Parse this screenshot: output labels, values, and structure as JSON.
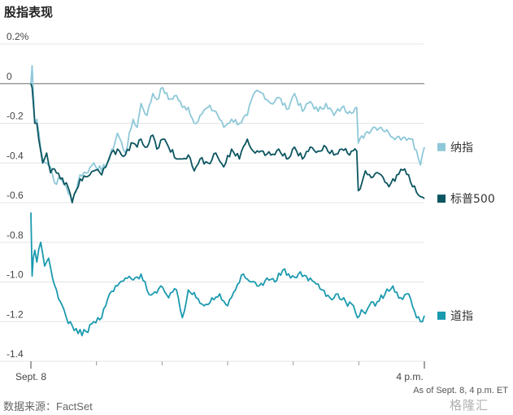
{
  "header": {
    "title": "股指表现"
  },
  "footer": {
    "source": "数据来源：FactSet",
    "as_of": "As of Sept. 8, 4 p.m. ET",
    "watermark": "格隆汇"
  },
  "chart_data": {
    "type": "line",
    "title": "股指表现",
    "xlabel": "",
    "ylabel": "",
    "ylim": [
      -1.4,
      0.2
    ],
    "yticks": [
      0.2,
      0,
      -0.2,
      -0.4,
      -0.6,
      -0.8,
      -1.0,
      -1.2,
      -1.4
    ],
    "ytick_labels": [
      "0.2%",
      "0",
      "-0.2",
      "-0.4",
      "-0.6",
      "-0.8",
      "-1.0",
      "-1.2",
      "-1.4"
    ],
    "xticks": [
      "Sept. 8",
      "4 p.m."
    ],
    "x_minor_ticks": 6,
    "zero_line": true,
    "grid": "horizontal",
    "legend": "right, at series ends",
    "series": [
      {
        "name": "纳指",
        "color": "#8ec8d8",
        "x": [
          0,
          0.3,
          1,
          1.5,
          3,
          4,
          5,
          6,
          7.5,
          9,
          10.5,
          12.5,
          14,
          16,
          18,
          20,
          22,
          24,
          26,
          27,
          28,
          29.5,
          31,
          32,
          33.5,
          35,
          37,
          38.5,
          40,
          41.5,
          43,
          45,
          47,
          49,
          51,
          53,
          55,
          57,
          59,
          61,
          63,
          65,
          67,
          69,
          71,
          73,
          75,
          77,
          79,
          81,
          82.8,
          83.2,
          85,
          87,
          89,
          91,
          93,
          95,
          97,
          99,
          100
        ],
        "y": [
          0,
          0.09,
          -0.2,
          -0.18,
          -0.38,
          -0.4,
          -0.42,
          -0.5,
          -0.48,
          -0.52,
          -0.6,
          -0.46,
          -0.45,
          -0.4,
          -0.44,
          -0.38,
          -0.25,
          -0.35,
          -0.18,
          -0.22,
          -0.1,
          -0.16,
          -0.05,
          -0.08,
          -0.02,
          -0.08,
          -0.06,
          -0.12,
          -0.12,
          -0.2,
          -0.16,
          -0.12,
          -0.14,
          -0.22,
          -0.18,
          -0.2,
          -0.16,
          -0.04,
          -0.05,
          -0.1,
          -0.07,
          -0.13,
          -0.05,
          -0.14,
          -0.09,
          -0.14,
          -0.1,
          -0.16,
          -0.12,
          -0.14,
          -0.12,
          -0.3,
          -0.25,
          -0.22,
          -0.22,
          -0.25,
          -0.27,
          -0.27,
          -0.28,
          -0.41,
          -0.32
        ]
      },
      {
        "name": "标普500",
        "color": "#0b5560",
        "x": [
          0,
          0.3,
          1,
          1.5,
          3,
          4,
          5,
          6,
          7.5,
          9,
          10.5,
          12.5,
          14,
          16,
          18,
          20,
          22,
          24,
          26,
          27,
          28,
          29.5,
          31,
          32,
          33.5,
          35,
          37,
          38.5,
          40,
          41.5,
          43,
          45,
          47,
          49,
          51,
          53,
          55,
          57,
          59,
          61,
          63,
          65,
          67,
          69,
          71,
          73,
          75,
          77,
          79,
          81,
          82.8,
          83.2,
          85,
          87,
          89,
          91,
          93,
          95,
          97,
          99,
          100
        ],
        "y": [
          0,
          -0.02,
          -0.2,
          -0.2,
          -0.4,
          -0.35,
          -0.45,
          -0.43,
          -0.48,
          -0.5,
          -0.6,
          -0.48,
          -0.47,
          -0.44,
          -0.46,
          -0.37,
          -0.33,
          -0.36,
          -0.3,
          -0.32,
          -0.28,
          -0.32,
          -0.26,
          -0.33,
          -0.28,
          -0.32,
          -0.38,
          -0.38,
          -0.36,
          -0.44,
          -0.38,
          -0.4,
          -0.35,
          -0.42,
          -0.33,
          -0.38,
          -0.28,
          -0.35,
          -0.34,
          -0.36,
          -0.33,
          -0.38,
          -0.32,
          -0.38,
          -0.32,
          -0.34,
          -0.32,
          -0.36,
          -0.33,
          -0.36,
          -0.34,
          -0.54,
          -0.44,
          -0.47,
          -0.46,
          -0.52,
          -0.46,
          -0.43,
          -0.52,
          -0.57,
          -0.58
        ]
      },
      {
        "name": "道指",
        "color": "#1a9aaf",
        "x": [
          0,
          0.3,
          0.6,
          1,
          1.5,
          2.5,
          3.5,
          4.5,
          5.5,
          6.5,
          7.5,
          9,
          10.5,
          12,
          14,
          16,
          18,
          20,
          22,
          24,
          26,
          28,
          29.5,
          31,
          33,
          35,
          37,
          38.5,
          40,
          42,
          44,
          46,
          48,
          50,
          52,
          54,
          56,
          58,
          60,
          62,
          64,
          66,
          68,
          70,
          72,
          74,
          76,
          78,
          80,
          82,
          83,
          84,
          85,
          86,
          88,
          90,
          92,
          94,
          96,
          98,
          99,
          100
        ],
        "y": [
          -0.65,
          -0.97,
          -0.88,
          -0.84,
          -0.9,
          -0.8,
          -0.92,
          -0.88,
          -0.98,
          -1.04,
          -1.1,
          -1.18,
          -1.22,
          -1.26,
          -1.25,
          -1.2,
          -1.18,
          -1.06,
          -1.02,
          -0.98,
          -0.99,
          -0.96,
          -1.04,
          -1.06,
          -1.02,
          -1.08,
          -1.04,
          -1.18,
          -1.04,
          -1.08,
          -1.12,
          -1.08,
          -1.06,
          -1.12,
          -1.04,
          -0.96,
          -1.0,
          -1.02,
          -0.98,
          -1.0,
          -0.94,
          -0.98,
          -0.96,
          -0.97,
          -1.0,
          -1.04,
          -1.08,
          -1.06,
          -1.1,
          -1.12,
          -1.18,
          -1.14,
          -1.16,
          -1.12,
          -1.1,
          -1.06,
          -1.02,
          -1.08,
          -1.06,
          -1.18,
          -1.2,
          -1.17
        ]
      }
    ]
  }
}
